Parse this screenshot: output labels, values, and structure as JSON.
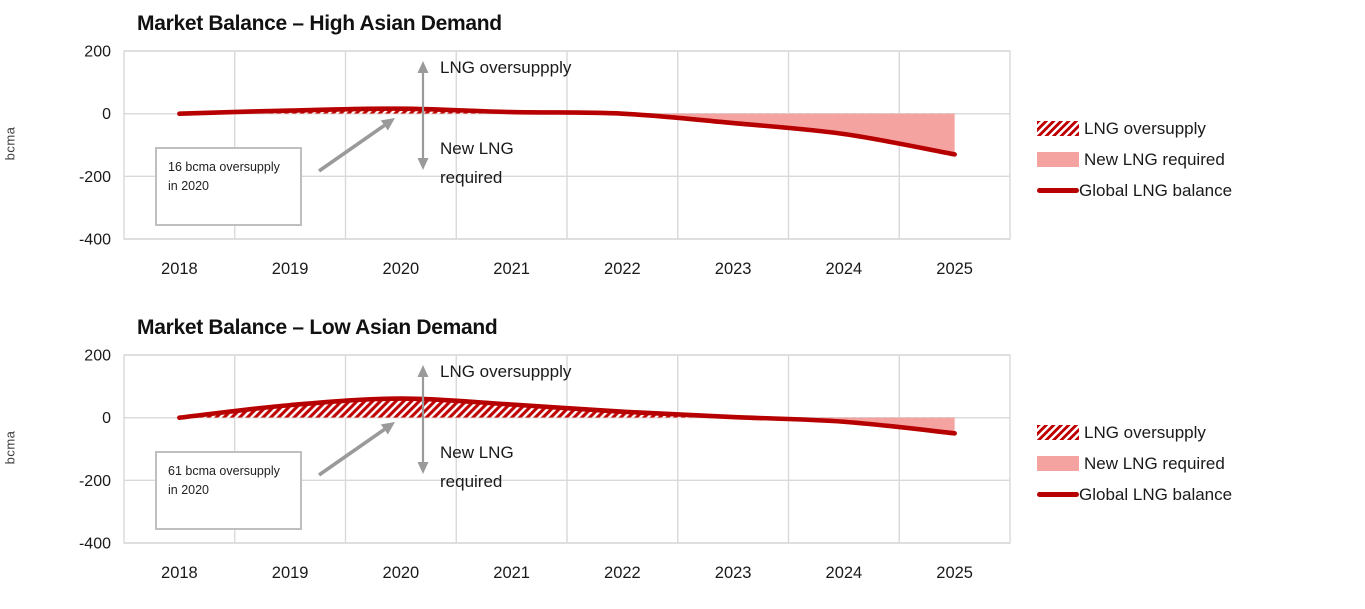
{
  "colors": {
    "line": "#b70000",
    "hatch": "#c00000",
    "area_negative": "#f5a3a1",
    "grid": "#d9d9d9",
    "annotation_gray": "#9a9a9a",
    "text": "#1a1a1a",
    "callout_border": "#bfbfbf"
  },
  "chart_data": [
    {
      "type": "area",
      "title": "Market Balance – High Asian Demand",
      "ylabel": "bcma",
      "xlabel": "",
      "categories": [
        "2018",
        "2019",
        "2020",
        "2021",
        "2022",
        "2023",
        "2024",
        "2025"
      ],
      "series": [
        {
          "name": "Global LNG balance",
          "values": [
            0,
            10,
            16,
            5,
            0,
            -30,
            -65,
            -130
          ]
        }
      ],
      "area_fills": [
        {
          "name": "LNG oversupply",
          "region": "above-zero",
          "style": "red-hatched"
        },
        {
          "name": "New LNG required",
          "region": "below-zero",
          "style": "solid-pink"
        }
      ],
      "ylim": [
        -400,
        200
      ],
      "yticks": [
        200,
        0,
        -200,
        -400
      ],
      "grid": true,
      "legend_position": "right",
      "legend": [
        "LNG oversupply",
        "New LNG required",
        "Global LNG balance"
      ],
      "annotations": {
        "up_arrow_label": "LNG oversuppply",
        "down_arrow_label": "New LNG required",
        "callout_text": "16 bcma oversupply in 2020"
      }
    },
    {
      "type": "area",
      "title": "Market Balance – Low Asian Demand",
      "ylabel": "bcma",
      "xlabel": "",
      "categories": [
        "2018",
        "2019",
        "2020",
        "2021",
        "2022",
        "2023",
        "2024",
        "2025"
      ],
      "series": [
        {
          "name": "Global LNG balance",
          "values": [
            0,
            40,
            61,
            42,
            19,
            2,
            -13,
            -50
          ]
        }
      ],
      "area_fills": [
        {
          "name": "LNG oversupply",
          "region": "above-zero",
          "style": "red-hatched"
        },
        {
          "name": "New LNG required",
          "region": "below-zero",
          "style": "solid-pink"
        }
      ],
      "ylim": [
        -400,
        200
      ],
      "yticks": [
        200,
        0,
        -200,
        -400
      ],
      "grid": true,
      "legend_position": "right",
      "legend": [
        "LNG oversupply",
        "New LNG required",
        "Global LNG balance"
      ],
      "annotations": {
        "up_arrow_label": "LNG oversuppply",
        "down_arrow_label": "New LNG required",
        "callout_text": "61 bcma oversupply in 2020"
      }
    }
  ]
}
